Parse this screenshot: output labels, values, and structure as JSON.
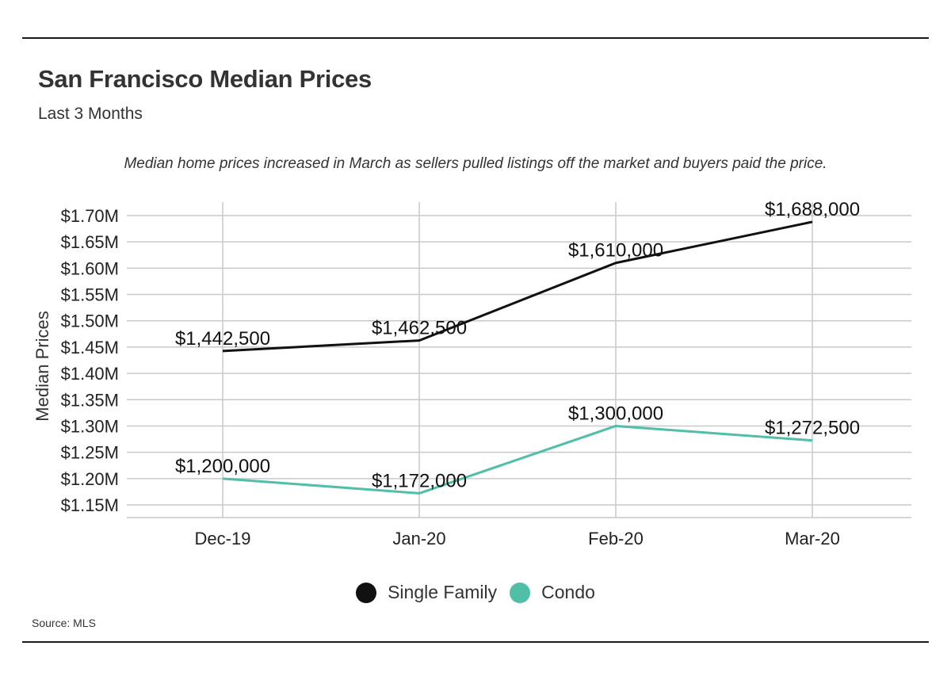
{
  "title": "San Francisco Median Prices",
  "subtitle": "Last 3 Months",
  "note": "Median home prices increased in March as sellers pulled listings off the market and buyers paid the price.",
  "source": "Source: MLS",
  "colors": {
    "single_family": "#111111",
    "condo": "#4fbfa8",
    "grid": "#c9c9c9"
  },
  "chart_data": {
    "type": "line",
    "categories": [
      "Dec-19",
      "Jan-20",
      "Feb-20",
      "Mar-20"
    ],
    "ylabel": "Median Prices",
    "ylim": [
      1150000,
      1700000
    ],
    "yticks": [
      "$1.15M",
      "$1.20M",
      "$1.25M",
      "$1.30M",
      "$1.35M",
      "$1.40M",
      "$1.45M",
      "$1.50M",
      "$1.55M",
      "$1.60M",
      "$1.65M",
      "$1.70M"
    ],
    "grid": true,
    "legend_position": "bottom",
    "series": [
      {
        "name": "Single Family",
        "values": [
          1442500,
          1462500,
          1610000,
          1688000
        ],
        "labels": [
          "$1,442,500",
          "$1,462,500",
          "$1,610,000",
          "$1,688,000"
        ]
      },
      {
        "name": "Condo",
        "values": [
          1200000,
          1172000,
          1300000,
          1272500
        ],
        "labels": [
          "$1,200,000",
          "$1,172,000",
          "$1,300,000",
          "$1,272,500"
        ]
      }
    ]
  }
}
